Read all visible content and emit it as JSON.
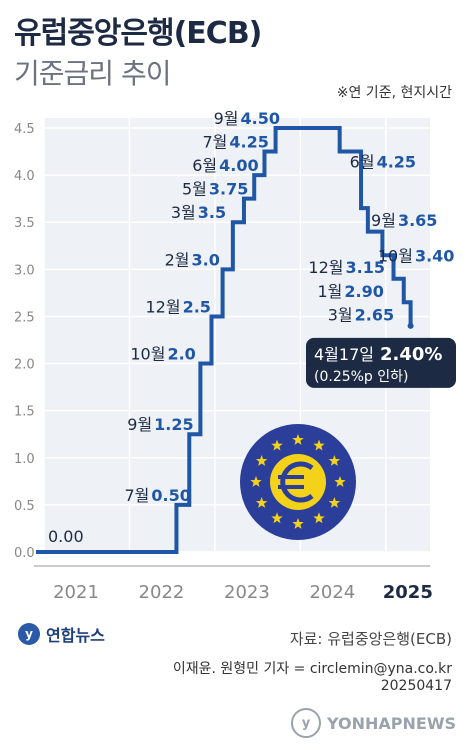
{
  "header": {
    "title": "유럽중앙은행(ECB)",
    "subtitle": "기준금리 추이",
    "note": "※연 기준, 현지시간"
  },
  "chart_data": {
    "type": "line",
    "step": true,
    "title": "유럽중앙은행(ECB) 기준금리 추이",
    "ylim": [
      0,
      4.5
    ],
    "yticks": [
      "0.0",
      "0.5",
      "1.0",
      "1.5",
      "2.0",
      "2.5",
      "3.0",
      "3.5",
      "4.0",
      "4.5"
    ],
    "xticks": [
      "2021",
      "2022",
      "2023",
      "2024",
      "2025"
    ],
    "grid": true,
    "line_color": "#1f57a6",
    "points": [
      {
        "x": 2021.0,
        "y": 0.0,
        "label_month": "",
        "label_value": "0.00"
      },
      {
        "x": 2022.55,
        "y": 0.5,
        "label_month": "7월",
        "label_value": "0.50"
      },
      {
        "x": 2022.7,
        "y": 1.25,
        "label_month": "9월",
        "label_value": "1.25"
      },
      {
        "x": 2022.83,
        "y": 2.0,
        "label_month": "10월",
        "label_value": "2.0"
      },
      {
        "x": 2022.96,
        "y": 2.5,
        "label_month": "12월",
        "label_value": "2.5"
      },
      {
        "x": 2023.09,
        "y": 3.0,
        "label_month": "2월",
        "label_value": "3.0"
      },
      {
        "x": 2023.21,
        "y": 3.5,
        "label_month": "3월",
        "label_value": "3.5"
      },
      {
        "x": 2023.34,
        "y": 3.75,
        "label_month": "5월",
        "label_value": "3.75"
      },
      {
        "x": 2023.46,
        "y": 4.0,
        "label_month": "6월",
        "label_value": "4.00"
      },
      {
        "x": 2023.58,
        "y": 4.25,
        "label_month": "7월",
        "label_value": "4.25"
      },
      {
        "x": 2023.71,
        "y": 4.5,
        "label_month": "9월",
        "label_value": "4.50"
      },
      {
        "x": 2024.46,
        "y": 4.25,
        "label_month": "6월",
        "label_value": "4.25"
      },
      {
        "x": 2024.71,
        "y": 3.65,
        "label_month": "9월",
        "label_value": "3.65"
      },
      {
        "x": 2024.79,
        "y": 3.4,
        "label_month": "10월",
        "label_value": "3.40"
      },
      {
        "x": 2024.96,
        "y": 3.15,
        "label_month": "12월",
        "label_value": "3.15"
      },
      {
        "x": 2025.09,
        "y": 2.9,
        "label_month": "1월",
        "label_value": "2.90"
      },
      {
        "x": 2025.21,
        "y": 2.65,
        "label_month": "3월",
        "label_value": "2.65"
      },
      {
        "x": 2025.29,
        "y": 2.4,
        "label_month": "4월17일",
        "label_value": "2.40%"
      }
    ],
    "callout": {
      "date": "4월17일",
      "value": "2.40%",
      "change": "(0.25%p 인하)"
    }
  },
  "footer": {
    "logo": "연합뉴스",
    "source": "자료: 유럽중앙은행(ECB)",
    "credit": "이재윤. 원형민 기자 = circlemin@yna.co.kr",
    "date": "20250417",
    "watermark": "YONHAPNEWS"
  }
}
